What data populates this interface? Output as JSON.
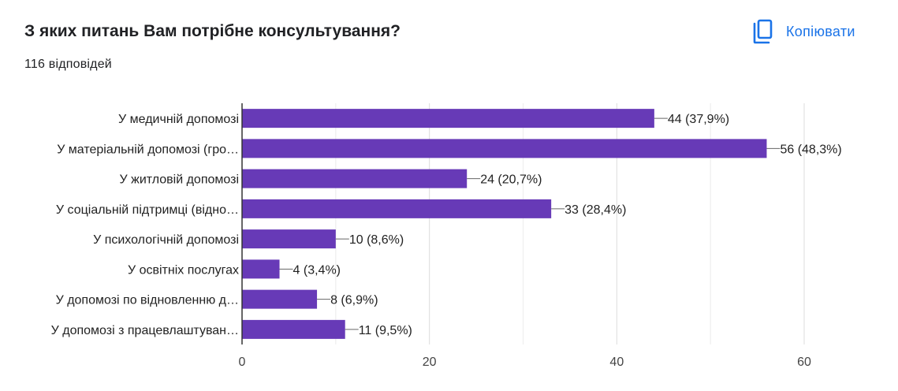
{
  "header": {
    "title": "З яких питань Вам потрібне консультування?",
    "responses": "116 відповідей",
    "copy_label": "Копіювати",
    "copy_icon": "copy-icon"
  },
  "colors": {
    "bar": "#673ab7",
    "accent": "#1a73e8",
    "grid": "#e0e0e0",
    "axis": "#333333"
  },
  "chart_data": {
    "type": "bar",
    "orientation": "horizontal",
    "categories": [
      "У медичній допомозі",
      "У матеріальній допомозі (гро…",
      "У житловій допомозі",
      "У соціальній підтримці (відно…",
      "У психологічній допомозі",
      "У освітніх послугах",
      "У допомозі по відновленню д…",
      "У допомозі з працевлаштуван…"
    ],
    "values": [
      44,
      56,
      24,
      33,
      10,
      4,
      8,
      11
    ],
    "value_labels": [
      "44 (37,9%)",
      "56 (48,3%)",
      "24 (20,7%)",
      "33 (28,4%)",
      "10 (8,6%)",
      "4 (3,4%)",
      "8 (6,9%)",
      "11 (9,5%)"
    ],
    "xlim": [
      0,
      60
    ],
    "xticks": [
      0,
      20,
      40,
      60
    ],
    "grid": true
  }
}
